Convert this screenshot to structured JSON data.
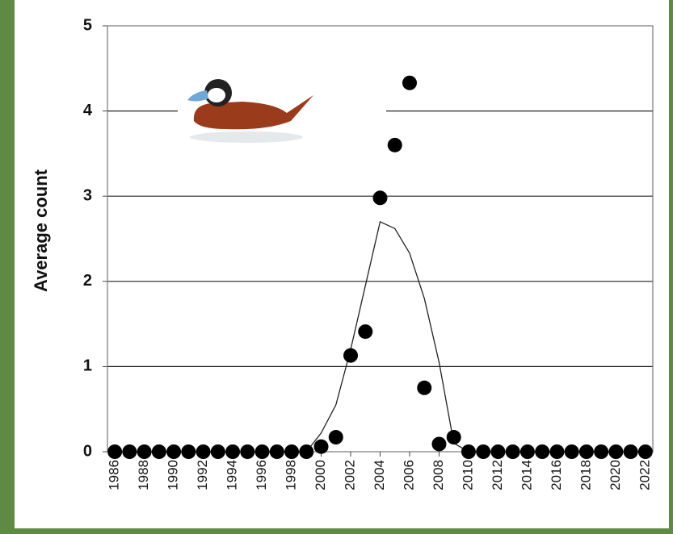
{
  "chart_data": {
    "type": "scatter",
    "ylabel": "Average count",
    "x": [
      1986,
      1987,
      1988,
      1989,
      1990,
      1991,
      1992,
      1993,
      1994,
      1995,
      1996,
      1997,
      1998,
      1999,
      2000,
      2001,
      2002,
      2003,
      2004,
      2005,
      2006,
      2007,
      2008,
      2009,
      2010,
      2011,
      2012,
      2013,
      2014,
      2015,
      2016,
      2017,
      2018,
      2019,
      2020,
      2021,
      2022
    ],
    "series": [
      {
        "mode": "markers",
        "color": "#000000",
        "values": [
          0,
          0,
          0,
          0,
          0,
          0,
          0,
          0,
          0,
          0,
          0,
          0,
          0,
          0,
          0.06,
          0.17,
          1.13,
          1.41,
          2.98,
          3.6,
          4.33,
          0.75,
          0.09,
          0.17,
          0,
          0,
          0,
          0,
          0,
          0,
          0,
          0,
          0,
          0,
          0,
          0,
          0
        ]
      },
      {
        "mode": "line",
        "color": "#222222",
        "values": [
          0,
          0,
          0,
          0,
          0,
          0,
          0,
          0,
          0,
          0,
          0,
          0,
          0,
          0,
          0.22,
          0.55,
          1.2,
          1.95,
          2.7,
          2.62,
          2.33,
          1.8,
          1.05,
          0.1,
          0,
          0,
          0,
          0,
          0,
          0,
          0,
          0,
          0,
          0,
          0,
          0,
          0
        ]
      }
    ],
    "xlim": [
      1985.5,
      2022.5
    ],
    "xticks": [
      1986,
      1988,
      1990,
      1992,
      1994,
      1996,
      1998,
      2000,
      2002,
      2004,
      2006,
      2008,
      2010,
      2012,
      2014,
      2016,
      2018,
      2020,
      2022
    ],
    "ylim": [
      0,
      5
    ],
    "yticks": [
      0,
      1,
      2,
      3,
      4,
      5
    ],
    "grid": true
  }
}
